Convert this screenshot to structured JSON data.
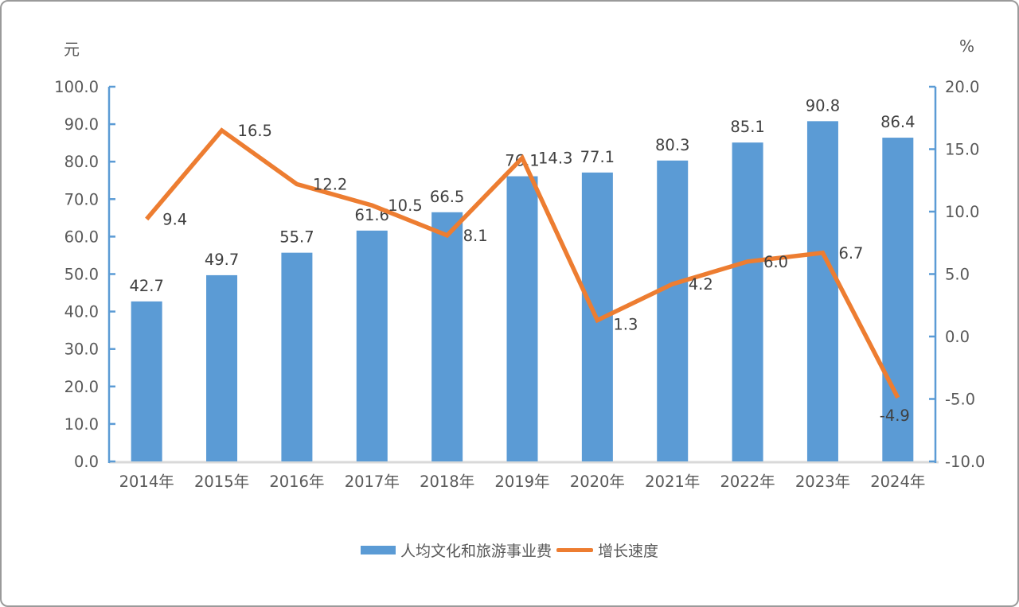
{
  "frame": {
    "background": "#ffffff",
    "border_color": "#9a9a9a"
  },
  "chart_data": {
    "type": "bar",
    "subtype": "combo-bar-line",
    "categories": [
      "2014年",
      "2015年",
      "2016年",
      "2017年",
      "2018年",
      "2019年",
      "2020年",
      "2021年",
      "2022年",
      "2023年",
      "2024年"
    ],
    "series": [
      {
        "name": "人均文化和旅游事业费",
        "type": "bar",
        "axis": "left",
        "color": "#5B9BD5",
        "values": [
          42.7,
          49.7,
          55.7,
          61.6,
          66.5,
          76.1,
          77.1,
          80.3,
          85.1,
          90.8,
          86.4
        ],
        "data_labels": [
          "42.7",
          "49.7",
          "55.7",
          "61.6",
          "66.5",
          "76.1",
          "77.1",
          "80.3",
          "85.1",
          "90.8",
          "86.4"
        ]
      },
      {
        "name": "增长速度",
        "type": "line",
        "axis": "right",
        "color": "#ED7D31",
        "values": [
          9.4,
          16.5,
          12.2,
          10.5,
          8.1,
          14.3,
          1.3,
          4.2,
          6.0,
          6.7,
          -4.9
        ],
        "data_labels": [
          "9.4",
          "16.5",
          "12.2",
          "10.5",
          "8.1",
          "14.3",
          "1.3",
          "4.2",
          "6.0",
          "6.7",
          "-4.9"
        ]
      }
    ],
    "left_axis": {
      "unit": "元",
      "min": 0,
      "max": 100,
      "step": 10,
      "tick_labels": [
        "0.0",
        "10.0",
        "20.0",
        "30.0",
        "40.0",
        "50.0",
        "60.0",
        "70.0",
        "80.0",
        "90.0",
        "100.0"
      ]
    },
    "right_axis": {
      "unit": "%",
      "min": -10,
      "max": 20,
      "step": 5,
      "tick_labels": [
        "-10.0",
        "-5.0",
        "0.0",
        "5.0",
        "10.0",
        "15.0",
        "20.0"
      ]
    },
    "legend": {
      "position": "bottom",
      "entries": [
        {
          "label": "人均文化和旅游事业费",
          "swatch": "bar"
        },
        {
          "label": "增长速度",
          "swatch": "line"
        }
      ]
    },
    "grid": false,
    "style": {
      "axis_line_color": "#5B9BD5",
      "baseline_color": "#D9D9D9",
      "tick_text_color": "#595959",
      "data_label_color": "#404040",
      "category_text_color": "#595959"
    }
  }
}
